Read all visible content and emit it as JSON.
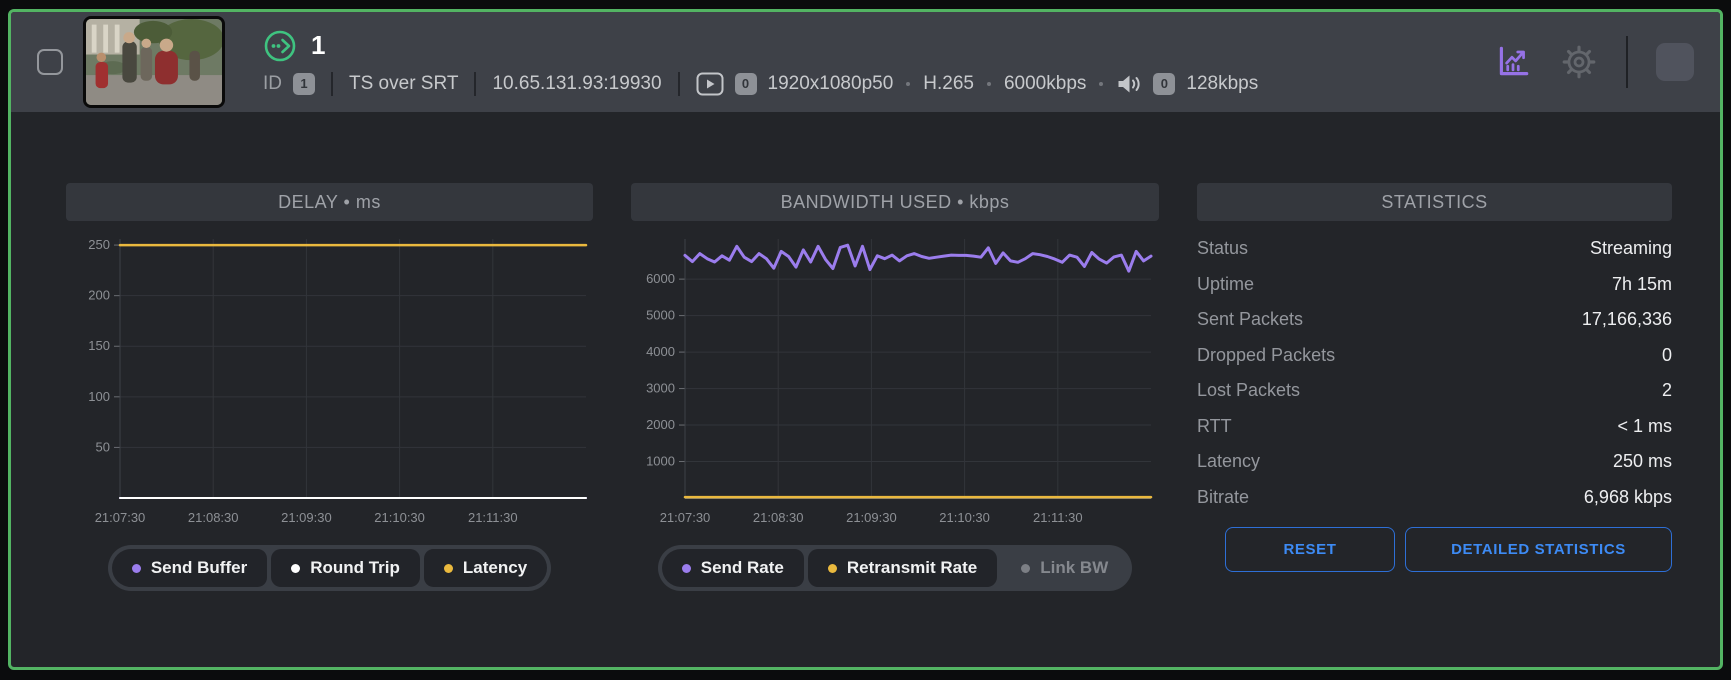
{
  "header": {
    "title": "1",
    "id_label": "ID",
    "id_value": "1",
    "protocol": "TS over SRT",
    "address": "10.65.131.93:19930",
    "video_track_count": "0",
    "video_format": "1920x1080p50",
    "video_codec": "H.265",
    "video_bitrate": "6000kbps",
    "audio_track_count": "0",
    "audio_bitrate": "128kbps"
  },
  "icons": {
    "stream_status": "streaming-out-icon",
    "video": "play-icon",
    "audio": "speaker-icon",
    "statistics": "chart-icon",
    "settings": "gear-icon",
    "stop": "stop-icon"
  },
  "colors": {
    "accent_green": "#53b463",
    "purple": "#9b7ded",
    "yellow": "#eab93e",
    "white_series": "#ffffff",
    "blue": "#3d8bf5",
    "header_bg": "#3e4148",
    "body_bg": "#232529"
  },
  "panels": {
    "statistics": {
      "title": "STATISTICS",
      "rows": [
        {
          "label": "Status",
          "value": "Streaming"
        },
        {
          "label": "Uptime",
          "value": "7h 15m"
        },
        {
          "label": "Sent Packets",
          "value": "17,166,336"
        },
        {
          "label": "Dropped Packets",
          "value": "0"
        },
        {
          "label": "Lost Packets",
          "value": "2"
        },
        {
          "label": "RTT",
          "value": "< 1 ms"
        },
        {
          "label": "Latency",
          "value": "250 ms"
        },
        {
          "label": "Bitrate",
          "value": "6,968 kbps"
        }
      ],
      "buttons": {
        "reset": "RESET",
        "detailed": "DETAILED STATISTICS"
      }
    }
  },
  "chart_data": [
    {
      "type": "line",
      "title": "DELAY • ms",
      "x_ticks": [
        "21:07:30",
        "21:08:30",
        "21:09:30",
        "21:10:30",
        "21:11:30"
      ],
      "y_ticks": [
        50,
        100,
        150,
        200,
        250
      ],
      "ylim": [
        0,
        256
      ],
      "grid": true,
      "legend_position": "bottom",
      "series": [
        {
          "name": "Send Buffer",
          "color": "#9b7ded",
          "enabled": true,
          "width": 2,
          "values": [
            0,
            0
          ]
        },
        {
          "name": "Round Trip",
          "color": "#ffffff",
          "enabled": true,
          "width": 2,
          "values": [
            0,
            0
          ]
        },
        {
          "name": "Latency",
          "color": "#eab93e",
          "enabled": true,
          "width": 2.5,
          "values": [
            250,
            250
          ]
        }
      ]
    },
    {
      "type": "line",
      "title": "BANDWIDTH USED • kbps",
      "x_ticks": [
        "21:07:30",
        "21:08:30",
        "21:09:30",
        "21:10:30",
        "21:11:30"
      ],
      "y_ticks": [
        1000,
        2000,
        3000,
        4000,
        5000,
        6000
      ],
      "ylim": [
        0,
        7100
      ],
      "grid": true,
      "legend_position": "bottom",
      "series": [
        {
          "name": "Send Rate",
          "color": "#9b7ded",
          "enabled": true,
          "width": 3,
          "values": [
            6650,
            6480,
            6700,
            6560,
            6470,
            6640,
            6520,
            6900,
            6600,
            6480,
            6700,
            6560,
            6300,
            6760,
            6620,
            6330,
            6800,
            6470,
            6900,
            6540,
            6290,
            6870,
            6930,
            6360,
            6900,
            6260,
            6640,
            6560,
            6660,
            6500,
            6640,
            6700,
            6620,
            6570,
            6600,
            6630,
            6660,
            6650,
            6650,
            6630,
            6600,
            6860,
            6430,
            6720,
            6500,
            6460,
            6560,
            6700,
            6670,
            6620,
            6550,
            6460,
            6660,
            6600,
            6350,
            6730,
            6550,
            6440,
            6610,
            6660,
            6220,
            6760,
            6500,
            6630
          ]
        },
        {
          "name": "Retransmit Rate",
          "color": "#eab93e",
          "enabled": true,
          "width": 2.5,
          "values": [
            25,
            25
          ]
        },
        {
          "name": "Link BW",
          "color": "#7c7f85",
          "enabled": false,
          "width": 2,
          "values": []
        }
      ]
    }
  ]
}
